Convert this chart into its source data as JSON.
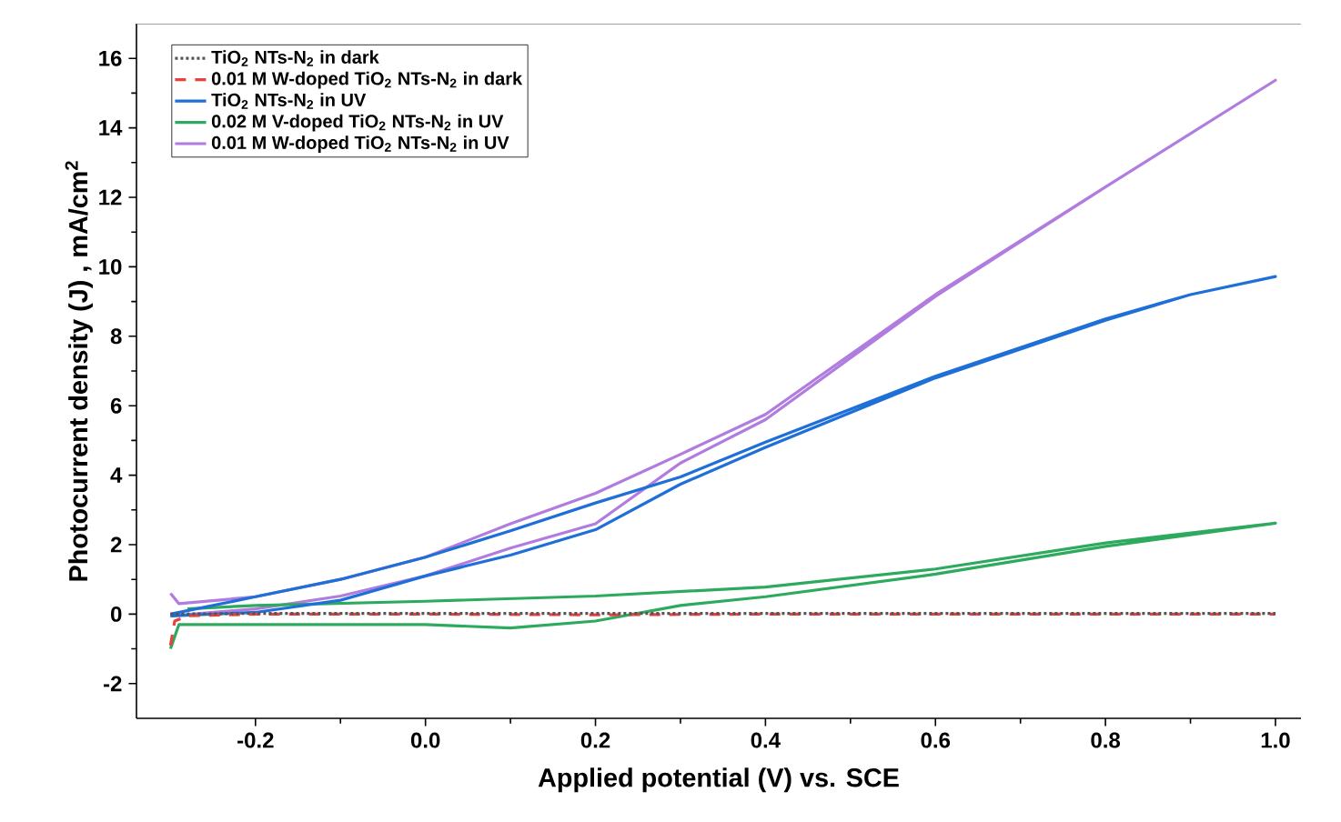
{
  "chart_data": {
    "type": "line",
    "xlabel": "Applied potential (V) vs. SCE",
    "ylabel": "Photocurrent density (J) , mA/cm$^{2}$",
    "xlim": [
      -0.34,
      1.03
    ],
    "ylim": [
      -3,
      17
    ],
    "xticks": [
      {
        "value": -0.2,
        "label": "-0.2"
      },
      {
        "value": 0,
        "label": "0.0"
      },
      {
        "value": 0.2,
        "label": "0.2"
      },
      {
        "value": 0.4,
        "label": "0.4"
      },
      {
        "value": 0.6,
        "label": "0.6"
      },
      {
        "value": 0.8,
        "label": "0.8"
      },
      {
        "value": 1.0,
        "label": "1.0"
      }
    ],
    "yticks": [
      -2,
      0,
      2,
      4,
      6,
      8,
      10,
      12,
      14,
      16
    ],
    "legend": "top left",
    "grid": false,
    "marker": "none",
    "series": [
      {
        "name": "TiO$_{2}$ NTs-N$_{2}$ in dark",
        "color": "#555555",
        "line_style": "dotted",
        "x": [
          -0.3,
          -0.2,
          0,
          0.2,
          0.4,
          0.6,
          0.8,
          1.0
        ],
        "values": [
          0.0,
          0.02,
          0.02,
          0.02,
          0.02,
          0.02,
          0.02,
          0.02
        ]
      },
      {
        "name": "0.01 M W-doped TiO$_{2}$ NTs-N$_{2}$ in dark",
        "color": "#e8413e",
        "line_style": "dashed",
        "x": [
          -0.3,
          -0.295,
          -0.28,
          -0.2,
          0,
          0.2,
          0.4,
          0.6,
          0.8,
          1.0
        ],
        "values": [
          -0.9,
          -0.2,
          -0.05,
          0.0,
          0.0,
          -0.02,
          0.0,
          0.0,
          0.0,
          0.0
        ]
      },
      {
        "name": "TiO$_{2}$ NTs-N$_{2}$ in UV",
        "color": "#1f6fd8",
        "line_style": "solid",
        "x": [
          -0.3,
          -0.2,
          -0.1,
          0,
          0.1,
          0.2,
          0.3,
          0.4,
          0.6,
          0.8,
          0.9,
          1.0,
          0.9,
          0.8,
          0.6,
          0.4,
          0.3,
          0.2,
          0.1,
          0,
          -0.1,
          -0.2,
          -0.3
        ],
        "values": [
          -0.05,
          0.05,
          0.4,
          1.1,
          1.7,
          2.43,
          3.74,
          4.8,
          6.8,
          8.46,
          9.2,
          9.72,
          9.2,
          8.5,
          6.85,
          4.95,
          3.95,
          3.2,
          2.4,
          1.64,
          1.0,
          0.5,
          0.0
        ]
      },
      {
        "name": "0.02 M V-doped TiO$_{2}$ NTs-N$_{2}$ in UV",
        "color": "#2eaa5f",
        "line_style": "solid",
        "x": [
          -0.3,
          -0.29,
          0,
          0.1,
          0.2,
          0.3,
          0.4,
          0.6,
          0.8,
          1.0,
          0.8,
          0.6,
          0.4,
          0.2,
          0,
          -0.2,
          -0.28
        ],
        "values": [
          -1.0,
          -0.3,
          -0.3,
          -0.4,
          -0.2,
          0.25,
          0.5,
          1.15,
          1.95,
          2.62,
          2.05,
          1.3,
          0.78,
          0.52,
          0.37,
          0.25,
          0.15
        ]
      },
      {
        "name": "0.01 M W-doped TiO$_{2}$ NTs-N$_{2}$ in UV",
        "color": "#b07ce0",
        "line_style": "solid",
        "x": [
          -0.3,
          -0.29,
          -0.2,
          -0.1,
          0,
          0.1,
          0.2,
          0.3,
          0.4,
          0.6,
          0.8,
          1.0,
          0.8,
          0.6,
          0.4,
          0.3,
          0.2,
          0.1,
          0,
          -0.1,
          -0.2,
          -0.3
        ],
        "values": [
          0.6,
          0.3,
          0.5,
          1.0,
          1.64,
          2.6,
          3.48,
          4.6,
          5.75,
          9.2,
          12.3,
          15.37,
          12.3,
          9.15,
          5.6,
          4.35,
          2.6,
          1.9,
          1.1,
          0.52,
          0.15,
          -0.05
        ]
      }
    ]
  }
}
